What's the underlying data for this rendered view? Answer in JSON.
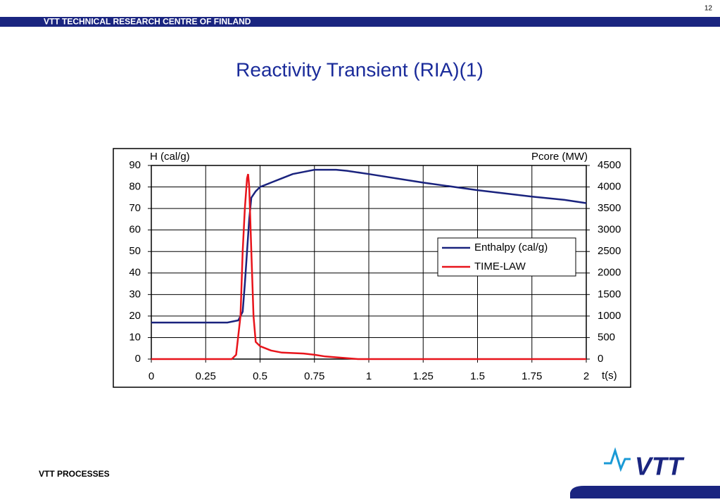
{
  "header": {
    "org": "VTT TECHNICAL RESEARCH CENTRE OF FINLAND",
    "page": "12"
  },
  "footer": {
    "text": "VTT PROCESSES",
    "logo": "VTT"
  },
  "chart_data": {
    "type": "line",
    "title": "Reactivity Transient (RIA)(1)",
    "y_label": "H (cal/g)",
    "y2_label": "Pcore (MW)",
    "x_label": "t(s)",
    "xlim": [
      0,
      2
    ],
    "xticks": [
      0,
      0.25,
      0.5,
      0.75,
      1,
      1.25,
      1.5,
      1.75,
      2
    ],
    "ylim": [
      0,
      90
    ],
    "yticks": [
      0,
      10,
      20,
      30,
      40,
      50,
      60,
      70,
      80,
      90
    ],
    "y2lim": [
      0,
      4500
    ],
    "y2ticks": [
      0,
      500,
      1000,
      1500,
      2000,
      2500,
      3000,
      3500,
      4000,
      4500
    ],
    "grid": true,
    "legend": "center-right",
    "series": [
      {
        "name": "Enthalpy (cal/g)",
        "color": "#1a237e",
        "x": [
          0,
          0.35,
          0.4,
          0.42,
          0.43,
          0.44,
          0.45,
          0.46,
          0.48,
          0.5,
          0.55,
          0.6,
          0.65,
          0.7,
          0.75,
          0.8,
          0.85,
          0.9,
          1.0,
          1.25,
          1.5,
          1.75,
          1.9,
          2.0
        ],
        "values": [
          17,
          17,
          18,
          22,
          35,
          50,
          65,
          75,
          78,
          80,
          82,
          84,
          86,
          87,
          88,
          88,
          88,
          87.5,
          86,
          82,
          78.5,
          75.5,
          74,
          72.5
        ]
      },
      {
        "name": "TIME-LAW",
        "color": "#e8141b",
        "axis": "y2",
        "x": [
          0,
          0.37,
          0.39,
          0.41,
          0.42,
          0.43,
          0.44,
          0.445,
          0.45,
          0.46,
          0.47,
          0.48,
          0.5,
          0.55,
          0.6,
          0.7,
          0.75,
          0.8,
          0.9,
          0.95,
          2
        ],
        "values": [
          0,
          0,
          100,
          1000,
          2500,
          3500,
          4200,
          4300,
          4000,
          2500,
          1000,
          400,
          300,
          200,
          150,
          130,
          100,
          60,
          20,
          0,
          0
        ]
      }
    ]
  }
}
